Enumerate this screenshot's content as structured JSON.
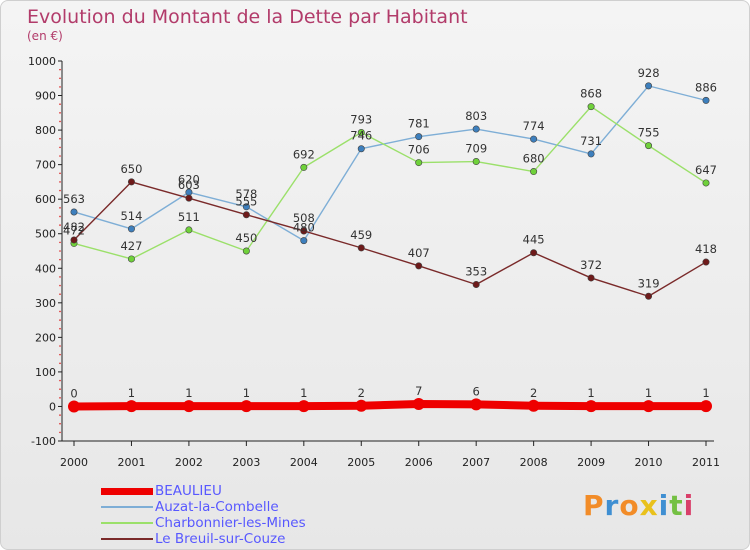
{
  "title": "Evolution du Montant de la Dette par Habitant",
  "unit_label": "(en €)",
  "logo_text": "Proxiti",
  "colors": {
    "title": "#b23b6a",
    "legend_text": "#5858ff",
    "logo_letters": [
      "#f28c28",
      "#3f8fd2",
      "#f28c28",
      "#e9c11b",
      "#3f8fd2",
      "#74c043",
      "#d93f6a"
    ]
  },
  "chart_data": {
    "type": "line",
    "title": "Evolution du Montant de la Dette par Habitant",
    "ylabel": "(en €)",
    "xlabel": "",
    "x": [
      "2000",
      "2001",
      "2002",
      "2003",
      "2004",
      "2005",
      "2006",
      "2007",
      "2008",
      "2009",
      "2010",
      "2011"
    ],
    "ylim": [
      -100,
      1000
    ],
    "yticks": [
      -100,
      0,
      100,
      200,
      300,
      400,
      500,
      600,
      700,
      800,
      900,
      1000
    ],
    "grid": false,
    "legend_position": "bottom-left",
    "series": [
      {
        "name": "BEAULIEU",
        "color": "#ee0000",
        "values": [
          0,
          1,
          1,
          1,
          1,
          2,
          7,
          6,
          2,
          1,
          1,
          1
        ]
      },
      {
        "name": "Auzat-la-Combelle",
        "color": "#7eaed6",
        "values": [
          563,
          514,
          620,
          578,
          480,
          746,
          781,
          803,
          774,
          731,
          928,
          886
        ]
      },
      {
        "name": "Charbonnier-les-Mines",
        "color": "#9be06a",
        "values": [
          472,
          427,
          511,
          450,
          692,
          793,
          706,
          709,
          680,
          868,
          755,
          647
        ]
      },
      {
        "name": "Le Breuil-sur-Couze",
        "color": "#7a2a2a",
        "values": [
          482,
          650,
          603,
          555,
          508,
          459,
          407,
          353,
          445,
          372,
          319,
          418
        ]
      }
    ]
  }
}
